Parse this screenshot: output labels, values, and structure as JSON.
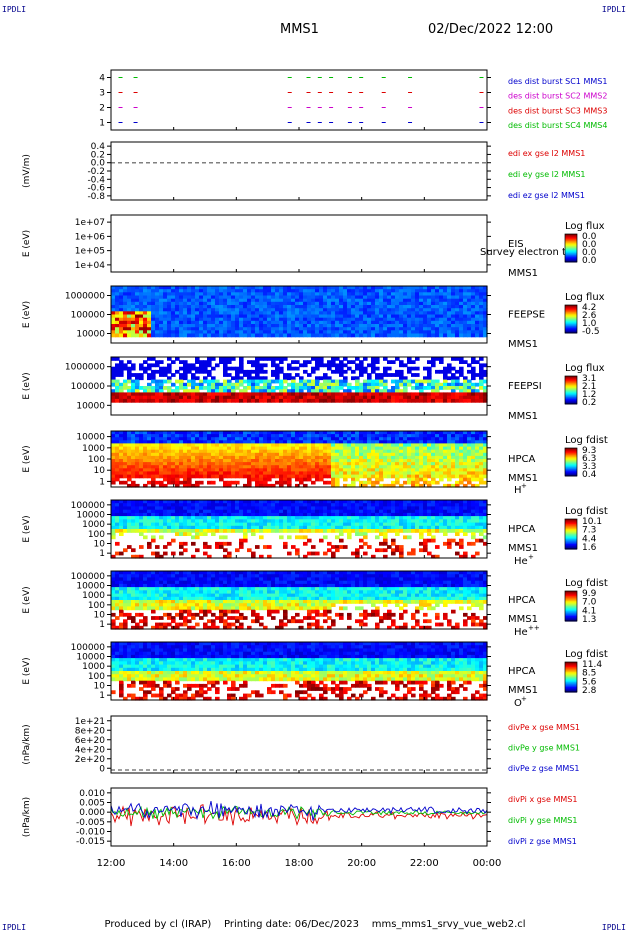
{
  "corners": {
    "tl": "IPDLI",
    "tr": "IPDLI",
    "bl": "IPDLI",
    "br": "IPDLI"
  },
  "header": {
    "mission": "MMS1",
    "date": "02/Dec/2022 12:00"
  },
  "footer": {
    "produced_by": "Produced by cl (IRAP)",
    "printing_date": "Printing date: 06/Dec/2023",
    "script": "mms_mms1_srvy_vue_web2.cl"
  },
  "x_axis": {
    "ticks": [
      "12:00",
      "14:00",
      "16:00",
      "18:00",
      "20:00",
      "22:00",
      "00:00"
    ]
  },
  "chart_data": [
    {
      "type": "line",
      "title": "",
      "ylabel": "",
      "yticks": [
        "1",
        "2",
        "3",
        "4"
      ],
      "series": [
        {
          "name": "des dist burst SC1 MMS1",
          "color": "#0000cc"
        },
        {
          "name": "des dist burst SC2 MMS2",
          "color": "#cc00cc"
        },
        {
          "name": "des dist burst SC3 MMS3",
          "color": "#dd0000"
        },
        {
          "name": "des dist burst SC4 MMS4",
          "color": "#00bb00"
        }
      ]
    },
    {
      "type": "line",
      "ylabel": "(mV/m)",
      "yticks": [
        "0.4",
        "0.2",
        "0.0",
        "-0.2",
        "-0.4",
        "-0.6",
        "-0.8"
      ],
      "series": [
        {
          "name": "edi ex gse l2 MMS1",
          "color": "#dd0000"
        },
        {
          "name": "edi ey gse l2 MMS1",
          "color": "#00bb00"
        },
        {
          "name": "edi ez gse l2 MMS1",
          "color": "#0000cc"
        }
      ]
    },
    {
      "type": "heatmap",
      "ylabel": "E (eV)",
      "yticks": [
        "1e+07",
        "1e+06",
        "1e+05",
        "1e+04"
      ],
      "instrument": "EIS",
      "spacecraft": "MMS1",
      "overlay": "Survey electron to",
      "colorbar": {
        "label": "Log flux",
        "ticks": [
          "0.0",
          "0.0",
          "0.0",
          "0.0"
        ]
      }
    },
    {
      "type": "heatmap",
      "ylabel": "E (eV)",
      "yticks": [
        "1000000",
        "100000",
        "10000"
      ],
      "instrument": "FEEPSE",
      "spacecraft": "MMS1",
      "colorbar": {
        "label": "Log flux",
        "ticks": [
          "4.2",
          "2.6",
          "1.0",
          "-0.5"
        ]
      }
    },
    {
      "type": "heatmap",
      "ylabel": "E (eV)",
      "yticks": [
        "1000000",
        "100000",
        "10000"
      ],
      "instrument": "FEEPSI",
      "spacecraft": "MMS1",
      "colorbar": {
        "label": "Log flux",
        "ticks": [
          "3.1",
          "2.1",
          "1.2",
          "0.2"
        ]
      }
    },
    {
      "type": "heatmap",
      "ylabel": "E (eV)",
      "yticks": [
        "10000",
        "1000",
        "100",
        "10",
        "1"
      ],
      "instrument": "HPCA",
      "spacecraft": "MMS1",
      "species": "H",
      "charge": "+",
      "colorbar": {
        "label": "Log fdist",
        "ticks": [
          "9.3",
          "6.3",
          "3.3",
          "0.4"
        ]
      }
    },
    {
      "type": "heatmap",
      "ylabel": "E (eV)",
      "yticks": [
        "100000",
        "10000",
        "1000",
        "100",
        "10",
        "1"
      ],
      "instrument": "HPCA",
      "spacecraft": "MMS1",
      "species": "He",
      "charge": "+",
      "colorbar": {
        "label": "Log fdist",
        "ticks": [
          "10.1",
          "7.3",
          "4.4",
          "1.6"
        ]
      }
    },
    {
      "type": "heatmap",
      "ylabel": "E (eV)",
      "yticks": [
        "100000",
        "10000",
        "1000",
        "100",
        "10",
        "1"
      ],
      "instrument": "HPCA",
      "spacecraft": "MMS1",
      "species": "He",
      "charge": "++",
      "colorbar": {
        "label": "Log fdist",
        "ticks": [
          "9.9",
          "7.0",
          "4.1",
          "1.3"
        ]
      }
    },
    {
      "type": "heatmap",
      "ylabel": "E (eV)",
      "yticks": [
        "100000",
        "10000",
        "1000",
        "100",
        "10",
        "1"
      ],
      "instrument": "HPCA",
      "spacecraft": "MMS1",
      "species": "O",
      "charge": "+",
      "colorbar": {
        "label": "Log fdist",
        "ticks": [
          "11.4",
          "8.5",
          "5.6",
          "2.8"
        ]
      }
    },
    {
      "type": "line",
      "ylabel": "(nPa/km)",
      "yticks": [
        "1e+21",
        "8e+20",
        "6e+20",
        "4e+20",
        "2e+20",
        "0"
      ],
      "series": [
        {
          "name": "divPe x gse MMS1",
          "color": "#dd0000"
        },
        {
          "name": "divPe y gse MMS1",
          "color": "#00bb00"
        },
        {
          "name": "divPe z gse MMS1",
          "color": "#0000cc"
        }
      ]
    },
    {
      "type": "line",
      "ylabel": "(nPa/km)",
      "yticks": [
        "0.010",
        "0.005",
        "0.000",
        "-0.005",
        "-0.010",
        "-0.015"
      ],
      "series": [
        {
          "name": "divPi x gse MMS1",
          "color": "#dd0000"
        },
        {
          "name": "divPi y gse MMS1",
          "color": "#00bb00"
        },
        {
          "name": "divPi z gse MMS1",
          "color": "#0000cc"
        }
      ]
    }
  ]
}
